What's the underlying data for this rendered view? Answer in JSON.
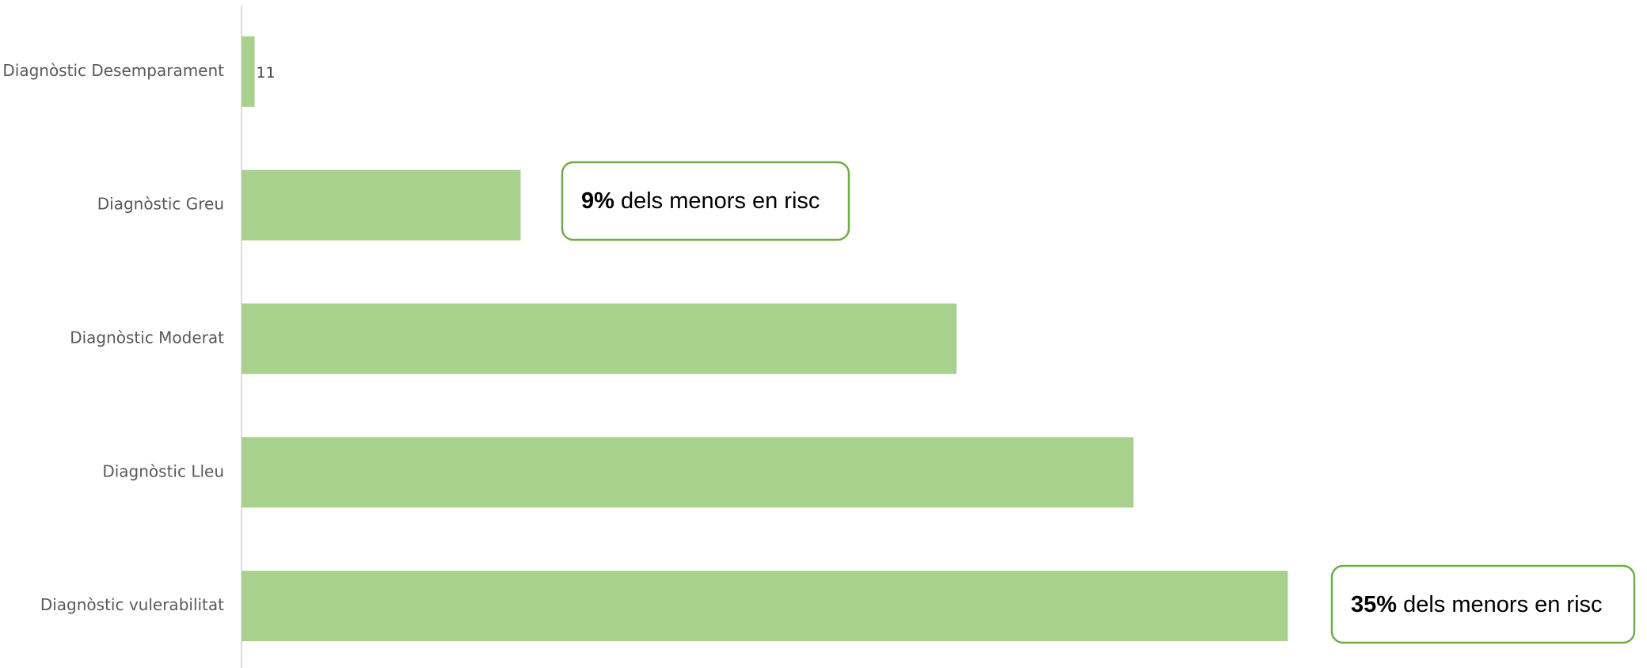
{
  "chart_data": {
    "type": "bar",
    "orientation": "horizontal",
    "categories": [
      "Diagnòstic Desemparament",
      "Diagnòstic Greu",
      "Diagnòstic Moderat",
      "Diagnòstic Lleu",
      "Diagnòstic vulerabilitat"
    ],
    "values": [
      11,
      235,
      602,
      751,
      881
    ],
    "color": "#a9d18e",
    "xlim": [
      0,
      1000
    ],
    "annotations": [
      {
        "emphasis": "9%",
        "text": "dels menors en risc"
      },
      {
        "emphasis": "35%",
        "text": "dels menors en risc"
      }
    ],
    "annotation_border": "#70ad47"
  }
}
